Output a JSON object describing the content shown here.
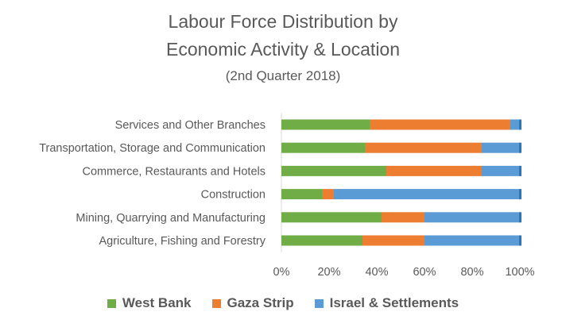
{
  "title_line1": "Labour Force Distribution by",
  "title_line2": "Economic Activity & Location",
  "subtitle": "(2nd Quarter 2018)",
  "colors": {
    "West Bank": "#70ad47",
    "Gaza Strip": "#ed7d31",
    "Israel & Settlements": "#5b9bd5"
  },
  "chart_data": {
    "type": "bar",
    "orientation": "horizontal",
    "stacked": "100%",
    "title": "Labour Force Distribution by Economic Activity & Location",
    "subtitle": "(2nd Quarter 2018)",
    "categories": [
      "Services and Other Branches",
      "Transportation, Storage and Communication",
      "Commerce, Restaurants and Hotels",
      "Construction",
      "Mining, Quarrying and Manufacturing",
      "Agriculture, Fishing and Forestry"
    ],
    "series": [
      {
        "name": "West Bank",
        "values": [
          37,
          35,
          44,
          17,
          42,
          34
        ]
      },
      {
        "name": "Gaza Strip",
        "values": [
          59,
          49,
          40,
          5,
          18,
          26
        ]
      },
      {
        "name": "Israel & Settlements",
        "values": [
          4,
          16,
          16,
          78,
          40,
          40
        ]
      }
    ],
    "xlim": [
      0,
      100
    ],
    "x_ticks": [
      "0%",
      "20%",
      "40%",
      "60%",
      "80%",
      "100%"
    ],
    "legend": "bottom",
    "grid": false
  }
}
